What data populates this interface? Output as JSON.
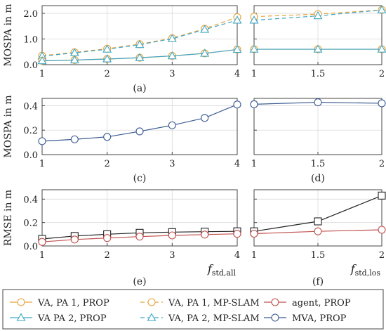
{
  "colors": {
    "orange": "#E8A33A",
    "teal": "#3FA6C4",
    "red": "#C0504D",
    "blue": "#3B5B92",
    "black": "#222222",
    "grid": "#d9d9d9"
  },
  "chart_data": [
    {
      "id": "a",
      "type": "line",
      "panel_label": "(a)",
      "ylabel": "MOSPA in m",
      "xlim": [
        1,
        4
      ],
      "ylim": [
        0,
        2.3
      ],
      "xticks": [
        1,
        2,
        3,
        4
      ],
      "xtick_labels": [
        "1",
        "2",
        "3",
        "4"
      ],
      "yticks": [
        0,
        1,
        2
      ],
      "ytick_labels": [
        "0.0",
        "1.0",
        "2.0"
      ],
      "grid": true,
      "series": [
        {
          "key": "va1_mpslam",
          "x": [
            1,
            1.5,
            2,
            2.5,
            3,
            3.5,
            4
          ],
          "y": [
            0.35,
            0.48,
            0.62,
            0.8,
            1.03,
            1.4,
            1.85
          ]
        },
        {
          "key": "va2_mpslam",
          "x": [
            1,
            1.5,
            2,
            2.5,
            3,
            3.5,
            4
          ],
          "y": [
            0.33,
            0.46,
            0.6,
            0.78,
            1.01,
            1.37,
            1.73
          ]
        },
        {
          "key": "va1_prop",
          "x": [
            1,
            1.5,
            2,
            2.5,
            3,
            3.5,
            4
          ],
          "y": [
            0.15,
            0.18,
            0.22,
            0.27,
            0.34,
            0.44,
            0.59
          ]
        },
        {
          "key": "va2_prop",
          "x": [
            1,
            1.5,
            2,
            2.5,
            3,
            3.5,
            4
          ],
          "y": [
            0.15,
            0.18,
            0.22,
            0.27,
            0.34,
            0.44,
            0.59
          ]
        }
      ]
    },
    {
      "id": "b",
      "type": "line",
      "panel_label": "",
      "ylabel": "",
      "xlim": [
        1,
        2
      ],
      "ylim": [
        0,
        2.3
      ],
      "xticks": [
        1,
        1.5,
        2
      ],
      "xtick_labels": [
        "1",
        "1.5",
        "2"
      ],
      "yticks": [
        0,
        1,
        2
      ],
      "ytick_labels": [],
      "grid": true,
      "series": [
        {
          "key": "va1_mpslam",
          "x": [
            1,
            1.5,
            2
          ],
          "y": [
            1.87,
            1.97,
            2.13
          ]
        },
        {
          "key": "va2_mpslam",
          "x": [
            1,
            1.5,
            2
          ],
          "y": [
            1.73,
            1.9,
            2.13
          ]
        },
        {
          "key": "va1_prop",
          "x": [
            1,
            1.5,
            2
          ],
          "y": [
            0.6,
            0.6,
            0.6
          ]
        },
        {
          "key": "va2_prop",
          "x": [
            1,
            1.5,
            2
          ],
          "y": [
            0.6,
            0.6,
            0.6
          ]
        }
      ]
    },
    {
      "id": "c",
      "type": "line",
      "panel_label": "(c)",
      "ylabel": "MOSPA in m",
      "xlim": [
        1,
        4
      ],
      "ylim": [
        0,
        0.46
      ],
      "xticks": [
        1,
        2,
        3,
        4
      ],
      "xtick_labels": [
        "1",
        "2",
        "3",
        "4"
      ],
      "yticks": [
        0,
        0.2,
        0.4
      ],
      "ytick_labels": [
        "0.0",
        "0.2",
        "0.4"
      ],
      "grid": true,
      "series": [
        {
          "key": "mva_prop",
          "x": [
            1,
            1.5,
            2,
            2.5,
            3,
            3.5,
            4
          ],
          "y": [
            0.11,
            0.125,
            0.145,
            0.19,
            0.24,
            0.3,
            0.41
          ]
        }
      ]
    },
    {
      "id": "d",
      "type": "line",
      "panel_label": "(d)",
      "ylabel": "",
      "xlim": [
        1,
        2
      ],
      "ylim": [
        0,
        0.46
      ],
      "xticks": [
        1,
        1.5,
        2
      ],
      "xtick_labels": [
        "1",
        "1.5",
        "2"
      ],
      "yticks": [
        0,
        0.2,
        0.4
      ],
      "ytick_labels": [],
      "grid": true,
      "series": [
        {
          "key": "mva_prop",
          "x": [
            1,
            1.5,
            2
          ],
          "y": [
            0.412,
            0.428,
            0.42
          ]
        }
      ]
    },
    {
      "id": "e",
      "type": "line",
      "panel_label": "(e)",
      "ylabel": "RMSE in m",
      "xname_main": "f",
      "xname_sub": "std,all",
      "xlim": [
        1,
        4
      ],
      "ylim": [
        0,
        0.48
      ],
      "xticks": [
        1,
        2,
        3,
        4
      ],
      "xtick_labels": [
        "1",
        "2",
        "3",
        "4"
      ],
      "yticks": [
        0,
        0.2,
        0.4
      ],
      "ytick_labels": [
        "0.0",
        "0.2",
        "0.4"
      ],
      "grid": true,
      "series": [
        {
          "key": "black_square",
          "x": [
            1,
            1.5,
            2,
            2.5,
            3,
            3.5,
            4
          ],
          "y": [
            0.06,
            0.085,
            0.1,
            0.112,
            0.118,
            0.122,
            0.125
          ]
        },
        {
          "key": "agent_prop",
          "x": [
            1,
            1.5,
            2,
            2.5,
            3,
            3.5,
            4
          ],
          "y": [
            0.035,
            0.055,
            0.068,
            0.08,
            0.09,
            0.097,
            0.104
          ]
        }
      ]
    },
    {
      "id": "f",
      "type": "line",
      "panel_label": "(f)",
      "ylabel": "",
      "xname_main": "f",
      "xname_sub": "std,los",
      "xlim": [
        1,
        2
      ],
      "ylim": [
        0,
        0.48
      ],
      "xticks": [
        1,
        1.5,
        2
      ],
      "xtick_labels": [
        "1",
        "1.5",
        "2"
      ],
      "yticks": [
        0,
        0.2,
        0.4
      ],
      "ytick_labels": [],
      "grid": true,
      "series": [
        {
          "key": "black_square",
          "x": [
            1,
            1.5,
            2
          ],
          "y": [
            0.125,
            0.21,
            0.43
          ]
        },
        {
          "key": "agent_prop",
          "x": [
            1,
            1.5,
            2
          ],
          "y": [
            0.105,
            0.125,
            0.138
          ]
        }
      ]
    }
  ],
  "styles": {
    "va1_mpslam": {
      "color": "#E8A33A",
      "dash": "6 4",
      "marker": "open-circle"
    },
    "va2_mpslam": {
      "color": "#3FA6C4",
      "dash": "6 4",
      "marker": "triangle"
    },
    "va1_prop": {
      "color": "#E8A33A",
      "dash": "",
      "marker": "open-circle"
    },
    "va2_prop": {
      "color": "#3FA6C4",
      "dash": "",
      "marker": "triangle"
    },
    "mva_prop": {
      "color": "#3B5B92",
      "dash": "",
      "marker": "open-circle"
    },
    "agent_prop": {
      "color": "#C0504D",
      "dash": "",
      "marker": "open-circle"
    },
    "black_square": {
      "color": "#222222",
      "dash": "",
      "marker": "square"
    }
  },
  "legend": {
    "placement": "bottom",
    "entries": [
      {
        "label": "VA, PA 1, PROP",
        "style": "va1_prop"
      },
      {
        "label": "VA, PA 1, MP-SLAM",
        "style": "va1_mpslam"
      },
      {
        "label": "agent, PROP",
        "style": "agent_prop"
      },
      {
        "label": "VA PA 2, PROP",
        "style": "va2_prop"
      },
      {
        "label": "VA, PA 2, MP-SLAM",
        "style": "va2_mpslam"
      },
      {
        "label": "MVA, PROP",
        "style": "mva_prop"
      }
    ]
  }
}
